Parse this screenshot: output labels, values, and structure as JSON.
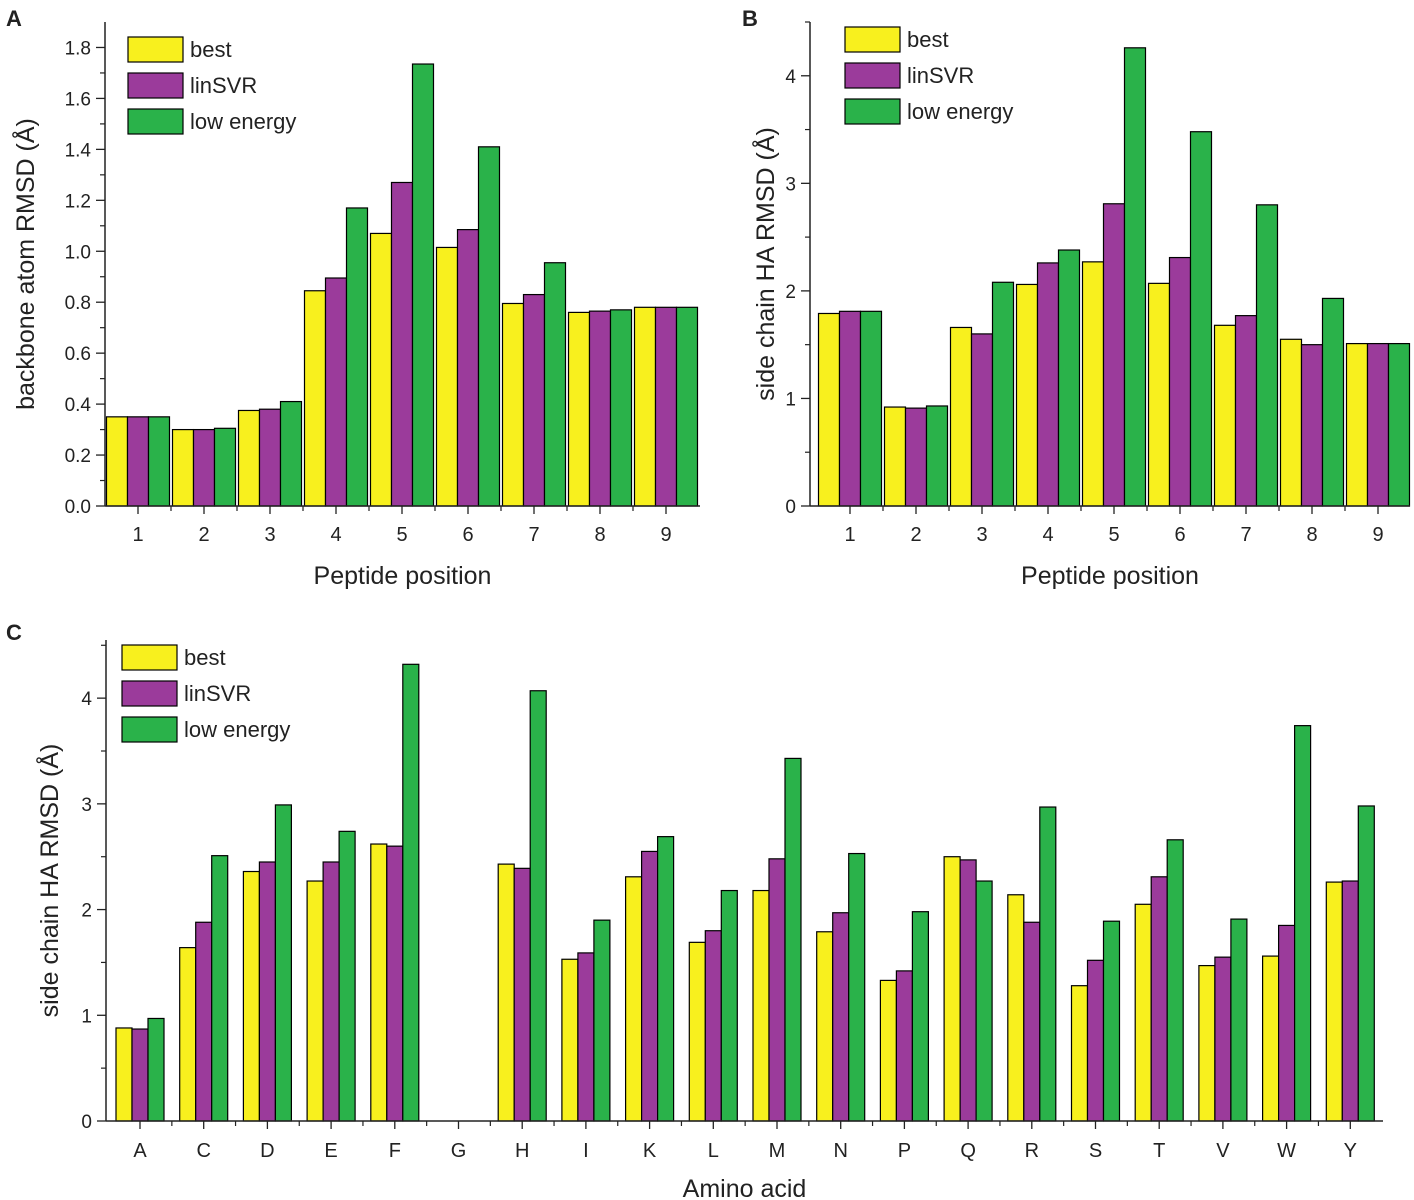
{
  "colors": {
    "best": "#f8f01e",
    "linSVR": "#9b3b9b",
    "low_energy": "#2ab24a",
    "axis": "#222222"
  },
  "chart_data": [
    {
      "panel": "A",
      "type": "bar",
      "xlabel": "Peptide position",
      "ylabel": "backbone atom RMSD (Å)",
      "categories": [
        "1",
        "2",
        "3",
        "4",
        "5",
        "6",
        "7",
        "8",
        "9"
      ],
      "ylim": [
        0,
        1.9
      ],
      "yticks": [
        0.0,
        0.2,
        0.4,
        0.6,
        0.8,
        1.0,
        1.2,
        1.4,
        1.6,
        1.8
      ],
      "ytick_labels": [
        "0.0",
        "0.2",
        "0.4",
        "0.6",
        "0.8",
        "1.0",
        "1.2",
        "1.4",
        "1.6",
        "1.8"
      ],
      "legend": [
        "best",
        "linSVR",
        "low energy"
      ],
      "legend_position": "top-left",
      "series": [
        {
          "name": "best",
          "values": [
            0.35,
            0.3,
            0.375,
            0.845,
            1.07,
            1.015,
            0.795,
            0.76,
            0.78
          ]
        },
        {
          "name": "linSVR",
          "values": [
            0.35,
            0.3,
            0.38,
            0.895,
            1.27,
            1.085,
            0.83,
            0.765,
            0.78
          ]
        },
        {
          "name": "low energy",
          "values": [
            0.35,
            0.305,
            0.41,
            1.17,
            1.735,
            1.41,
            0.955,
            0.77,
            0.78
          ]
        }
      ]
    },
    {
      "panel": "B",
      "type": "bar",
      "xlabel": "Peptide position",
      "ylabel": "side chain HA RMSD (Å)",
      "categories": [
        "1",
        "2",
        "3",
        "4",
        "5",
        "6",
        "7",
        "8",
        "9"
      ],
      "ylim": [
        0,
        4.5
      ],
      "yticks": [
        0,
        1,
        2,
        3,
        4
      ],
      "ytick_labels": [
        "0",
        "1",
        "2",
        "3",
        "4"
      ],
      "legend": [
        "best",
        "linSVR",
        "low energy"
      ],
      "legend_position": "top-left",
      "series": [
        {
          "name": "best",
          "values": [
            1.79,
            0.92,
            1.66,
            2.06,
            2.27,
            2.07,
            1.68,
            1.55,
            1.51
          ]
        },
        {
          "name": "linSVR",
          "values": [
            1.81,
            0.91,
            1.6,
            2.26,
            2.81,
            2.31,
            1.77,
            1.5,
            1.51
          ]
        },
        {
          "name": "low energy",
          "values": [
            1.81,
            0.93,
            2.08,
            2.38,
            4.26,
            3.48,
            2.8,
            1.93,
            1.51
          ]
        }
      ]
    },
    {
      "panel": "C",
      "type": "bar",
      "xlabel": "Amino acid",
      "ylabel": "side chain HA RMSD (Å)",
      "categories": [
        "A",
        "C",
        "D",
        "E",
        "F",
        "G",
        "H",
        "I",
        "K",
        "L",
        "M",
        "N",
        "P",
        "Q",
        "R",
        "S",
        "T",
        "V",
        "W",
        "Y"
      ],
      "ylim": [
        0,
        4.55
      ],
      "yticks": [
        0,
        1,
        2,
        3,
        4
      ],
      "ytick_labels": [
        "0",
        "1",
        "2",
        "3",
        "4"
      ],
      "legend": [
        "best",
        "linSVR",
        "low energy"
      ],
      "legend_position": "top-left",
      "series": [
        {
          "name": "best",
          "values": [
            0.88,
            1.64,
            2.36,
            2.27,
            2.62,
            null,
            2.43,
            1.53,
            2.31,
            1.69,
            2.18,
            1.79,
            1.33,
            2.5,
            2.14,
            1.28,
            2.05,
            1.47,
            1.56,
            2.26
          ]
        },
        {
          "name": "linSVR",
          "values": [
            0.87,
            1.88,
            2.45,
            2.45,
            2.6,
            null,
            2.39,
            1.59,
            2.55,
            1.8,
            2.48,
            1.97,
            1.42,
            2.47,
            1.88,
            1.52,
            2.31,
            1.55,
            1.85,
            2.27
          ]
        },
        {
          "name": "low energy",
          "values": [
            0.97,
            2.51,
            2.99,
            2.74,
            4.32,
            null,
            4.07,
            1.9,
            2.69,
            2.18,
            3.43,
            2.53,
            1.98,
            2.27,
            2.97,
            1.89,
            2.66,
            1.91,
            3.74,
            2.98
          ]
        }
      ]
    }
  ]
}
